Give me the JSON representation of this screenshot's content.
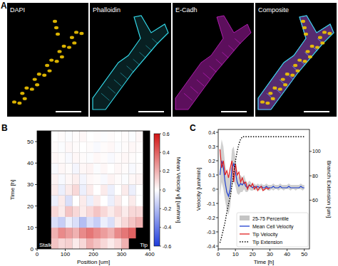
{
  "panel_a": {
    "label": "A",
    "images": [
      {
        "title": "DAPI",
        "color": "#f2c500"
      },
      {
        "title": "Phalloidin",
        "color": "#33d6e6"
      },
      {
        "title": "E-Cadh",
        "color": "#cc22cc"
      },
      {
        "title": "Composite"
      }
    ]
  },
  "chart_data": [
    {
      "type": "heatmap",
      "label": "B",
      "x_label": "Position [um]",
      "y_label": "Time [h]",
      "xlim": [
        0,
        400
      ],
      "ylim": [
        0,
        55
      ],
      "xticks": [
        0,
        100,
        200,
        300,
        400
      ],
      "yticks": [
        0,
        10,
        20,
        30,
        40,
        50
      ],
      "x_edges": [
        0,
        25,
        50,
        75,
        100,
        125,
        150,
        175,
        200,
        225,
        250,
        275,
        300,
        325,
        350,
        375,
        400
      ],
      "y_edges": [
        0,
        5,
        10,
        15,
        20,
        25,
        30,
        35,
        40,
        45,
        50,
        55
      ],
      "cells": [
        [
          null,
          null,
          0.15,
          0.1,
          0.12,
          0.05,
          0.1,
          0.2,
          0.15,
          0.1,
          0.05,
          0.1,
          0.2,
          null,
          null,
          null
        ],
        [
          null,
          null,
          0.2,
          0.3,
          0.25,
          0.2,
          0.3,
          0.35,
          0.3,
          0.25,
          0.2,
          0.3,
          0.35,
          0.4,
          null,
          null
        ],
        [
          null,
          null,
          -0.1,
          -0.15,
          -0.05,
          -0.1,
          -0.2,
          -0.1,
          -0.15,
          -0.05,
          -0.1,
          0.05,
          0.1,
          0.15,
          0.2,
          null
        ],
        [
          null,
          null,
          0.1,
          0.05,
          0.15,
          0.1,
          0.05,
          0.1,
          0.15,
          0.1,
          0.05,
          0.1,
          0.05,
          0.1,
          0.1,
          null
        ],
        [
          null,
          null,
          -0.05,
          0.05,
          -0.1,
          0,
          0.05,
          -0.05,
          0.05,
          0,
          -0.05,
          0.05,
          0,
          0.05,
          0,
          null
        ],
        [
          null,
          null,
          0.05,
          -0.05,
          0.05,
          0.1,
          -0.05,
          0.05,
          0,
          0.05,
          -0.05,
          0,
          0.05,
          -0.05,
          0,
          null
        ],
        [
          null,
          null,
          0.03,
          -0.02,
          0.02,
          0.04,
          -0.03,
          0.02,
          0.01,
          -0.02,
          0.03,
          0.01,
          -0.01,
          0.02,
          0.03,
          null
        ],
        [
          null,
          null,
          -0.02,
          0.02,
          0.01,
          -0.03,
          0.02,
          0.03,
          -0.01,
          0.02,
          0,
          0.02,
          0.01,
          -0.02,
          0.01,
          null
        ],
        [
          null,
          null,
          0.02,
          0.01,
          -0.02,
          0.02,
          0.01,
          -0.01,
          0.02,
          0.01,
          -0.02,
          0.01,
          0.02,
          0.01,
          0,
          null
        ],
        [
          null,
          null,
          0.01,
          -0.01,
          0.02,
          0.01,
          0,
          0.01,
          -0.02,
          0.01,
          0.02,
          -0.01,
          0.01,
          0.02,
          0.01,
          null
        ],
        [
          null,
          null,
          0,
          0.01,
          -0.01,
          0.01,
          0.02,
          0,
          0.01,
          -0.01,
          0.01,
          0,
          0.01,
          -0.01,
          0.02,
          null
        ]
      ],
      "colorbar": {
        "label": "Mean Velocity v∥ [um/min]",
        "range": [
          -0.6,
          0.6
        ],
        "ticks": [
          -0.6,
          -0.4,
          -0.2,
          0,
          0.2,
          0.4,
          0.6
        ]
      },
      "annotations": [
        "Stalk",
        "Tip"
      ]
    },
    {
      "type": "line",
      "label": "C",
      "x_label": "Time [h]",
      "y_label": "Velocity [um/min]",
      "y2_label": "Branch Extension [um]",
      "xlim": [
        0,
        53
      ],
      "ylim": [
        -0.42,
        0.42
      ],
      "y2lim": [
        20,
        118
      ],
      "xticks": [
        0,
        10,
        20,
        30,
        40,
        50
      ],
      "yticks": [
        -0.4,
        -0.3,
        -0.2,
        -0.1,
        0,
        0.1,
        0.2,
        0.3,
        0.4
      ],
      "y2ticks": [
        60,
        80,
        100
      ],
      "legend": "lower center",
      "x": [
        1,
        2,
        3,
        4,
        5,
        6,
        7,
        8,
        9,
        10,
        11,
        12,
        13,
        14,
        15,
        16,
        17,
        18,
        19,
        20,
        21,
        22,
        23,
        24,
        25,
        26,
        27,
        28,
        29,
        30,
        31,
        32,
        33,
        34,
        35,
        36,
        37,
        38,
        39,
        40,
        41,
        42,
        43,
        44,
        45,
        46,
        47,
        48,
        49,
        50
      ],
      "series": [
        {
          "name": "25-75 Percentile",
          "type": "area",
          "color": "#c4c4c4",
          "lower": [
            -0.05,
            0.05,
            0.0,
            -0.08,
            -0.15,
            -0.18,
            -0.12,
            0.02,
            0.06,
            0.02,
            -0.03,
            -0.04,
            -0.02,
            -0.02,
            0.0,
            -0.02,
            -0.02,
            0.0,
            -0.01,
            -0.01,
            0.0,
            -0.01,
            0.0,
            -0.01,
            0.0,
            -0.01,
            -0.01,
            0.0,
            -0.01,
            -0.01,
            0.0,
            -0.01,
            0.0,
            0.0,
            -0.01,
            0.0,
            0.0,
            -0.01,
            0.0,
            0.0,
            0.0,
            -0.01,
            0.0,
            0.0,
            -0.01,
            0.0,
            0.0,
            0.0,
            -0.01,
            0.0
          ],
          "upper": [
            0.25,
            0.35,
            0.3,
            0.18,
            0.1,
            0.08,
            0.12,
            0.28,
            0.3,
            0.22,
            0.13,
            0.08,
            0.1,
            0.08,
            0.1,
            0.06,
            0.04,
            0.06,
            0.05,
            0.03,
            0.04,
            0.03,
            0.04,
            0.03,
            0.04,
            0.03,
            0.03,
            0.04,
            0.03,
            0.03,
            0.03,
            0.04,
            0.03,
            0.03,
            0.03,
            0.04,
            0.03,
            0.03,
            0.03,
            0.03,
            0.04,
            0.03,
            0.03,
            0.03,
            0.03,
            0.03,
            0.03,
            0.04,
            0.03,
            0.03
          ]
        },
        {
          "name": "Mean Cell Velocity",
          "type": "line",
          "color": "#1f3fd0",
          "values": [
            0.1,
            0.2,
            0.15,
            0.05,
            -0.02,
            -0.05,
            0.0,
            0.15,
            0.18,
            0.12,
            0.05,
            0.02,
            0.04,
            0.03,
            0.05,
            0.02,
            0.01,
            0.03,
            0.02,
            0.01,
            0.02,
            0.01,
            0.02,
            0.01,
            0.02,
            0.01,
            0.01,
            0.02,
            0.01,
            0.01,
            0.01,
            0.02,
            0.01,
            0.01,
            0.01,
            0.02,
            0.01,
            0.01,
            0.01,
            0.01,
            0.02,
            0.01,
            0.01,
            0.01,
            0.01,
            0.01,
            0.01,
            0.02,
            0.01,
            0.01
          ]
        },
        {
          "name": "Tip Velocity",
          "type": "line",
          "color": "#e02020",
          "values": [
            0.28,
            0.15,
            0.2,
            0.1,
            0.13,
            0.08,
            0.15,
            0.2,
            0.05,
            0.18,
            0.1,
            0.12,
            0.05,
            0.08,
            0.04,
            0.05,
            0.0,
            0.03,
            0.02,
            0.04,
            0.0,
            0.02,
            -0.01,
            0.01,
            0.02,
            -0.01,
            0.0,
            0.01,
            0.0,
            0.01,
            null,
            null,
            null,
            null,
            null,
            null,
            null,
            null,
            null,
            null,
            null,
            null,
            null,
            null,
            null,
            null,
            null,
            null,
            null,
            null
          ]
        },
        {
          "name": "Tip Extension",
          "type": "line",
          "color": "#000000",
          "line_style": "dotted",
          "axis": "y2",
          "values": [
            25,
            30,
            36,
            42,
            50,
            57,
            63,
            72,
            82,
            92,
            100,
            106,
            110,
            112,
            112,
            112,
            112,
            112,
            112,
            112,
            112,
            112,
            112,
            112,
            112,
            112,
            112,
            112,
            112,
            112,
            112,
            112,
            112,
            112,
            112,
            112,
            112,
            112,
            112,
            112,
            112,
            112,
            112,
            112,
            112,
            112,
            112,
            112,
            112,
            112
          ]
        }
      ]
    }
  ]
}
